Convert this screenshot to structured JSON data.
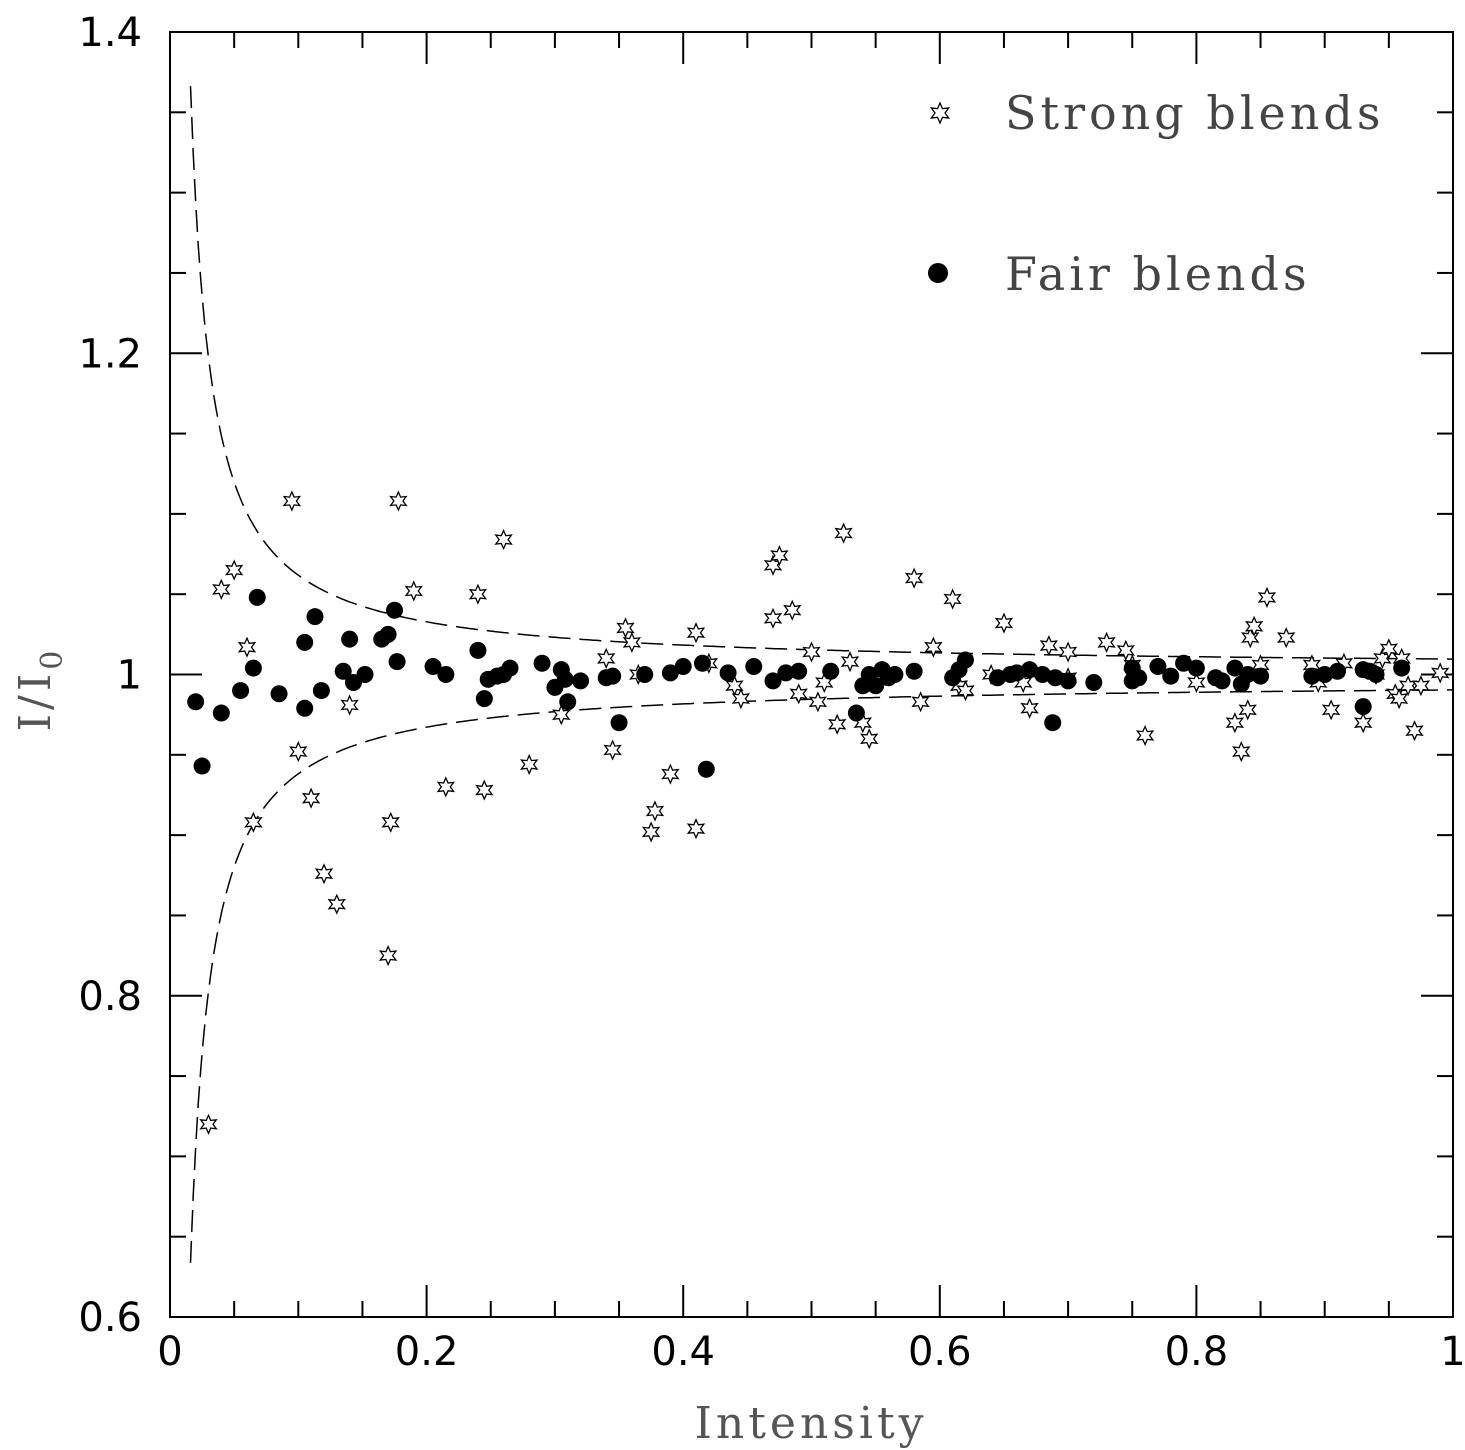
{
  "chart_data": {
    "type": "scatter",
    "xlabel": "Intensity",
    "ylabel": "I/I",
    "ylabel_sub": "0",
    "xlim": [
      0,
      1
    ],
    "ylim": [
      0.6,
      1.4
    ],
    "x_ticks": [
      {
        "value": 0,
        "label": "0"
      },
      {
        "value": 0.2,
        "label": "0.2"
      },
      {
        "value": 0.4,
        "label": "0.4"
      },
      {
        "value": 0.6,
        "label": "0.6"
      },
      {
        "value": 0.8,
        "label": "0.8"
      },
      {
        "value": 1,
        "label": "1"
      }
    ],
    "y_ticks": [
      {
        "value": 0.6,
        "label": "0.6"
      },
      {
        "value": 0.8,
        "label": "0.8"
      },
      {
        "value": 1,
        "label": "1"
      },
      {
        "value": 1.2,
        "label": "1.2"
      },
      {
        "value": 1.4,
        "label": "1.4"
      }
    ],
    "legend": {
      "placement": "top-right"
    },
    "series": [
      {
        "name": "Strong blends",
        "marker": "star",
        "points": [
          [
            0.03,
            0.72
          ],
          [
            0.04,
            1.053
          ],
          [
            0.05,
            1.065
          ],
          [
            0.06,
            1.017
          ],
          [
            0.065,
            0.908
          ],
          [
            0.095,
            1.108
          ],
          [
            0.1,
            0.952
          ],
          [
            0.11,
            0.923
          ],
          [
            0.12,
            0.876
          ],
          [
            0.13,
            0.857
          ],
          [
            0.14,
            0.981
          ],
          [
            0.17,
            0.825
          ],
          [
            0.172,
            0.908
          ],
          [
            0.178,
            1.108
          ],
          [
            0.19,
            1.052
          ],
          [
            0.215,
            0.93
          ],
          [
            0.24,
            1.05
          ],
          [
            0.245,
            0.928
          ],
          [
            0.26,
            1.084
          ],
          [
            0.28,
            0.944
          ],
          [
            0.305,
            0.975
          ],
          [
            0.34,
            1.01
          ],
          [
            0.345,
            0.953
          ],
          [
            0.355,
            1.029
          ],
          [
            0.36,
            1.02
          ],
          [
            0.365,
            1.0
          ],
          [
            0.375,
            0.902
          ],
          [
            0.378,
            0.915
          ],
          [
            0.39,
            0.938
          ],
          [
            0.41,
            0.904
          ],
          [
            0.41,
            1.026
          ],
          [
            0.42,
            1.007
          ],
          [
            0.44,
            0.993
          ],
          [
            0.445,
            0.985
          ],
          [
            0.47,
            1.035
          ],
          [
            0.47,
            1.068
          ],
          [
            0.475,
            1.074
          ],
          [
            0.485,
            1.04
          ],
          [
            0.49,
            0.988
          ],
          [
            0.5,
            1.014
          ],
          [
            0.505,
            0.983
          ],
          [
            0.51,
            0.995
          ],
          [
            0.52,
            0.969
          ],
          [
            0.525,
            1.088
          ],
          [
            0.53,
            1.008
          ],
          [
            0.54,
            0.97
          ],
          [
            0.545,
            0.96
          ],
          [
            0.58,
            1.06
          ],
          [
            0.585,
            0.983
          ],
          [
            0.595,
            1.017
          ],
          [
            0.61,
            1.047
          ],
          [
            0.615,
            0.993
          ],
          [
            0.62,
            0.99
          ],
          [
            0.64,
            1.0
          ],
          [
            0.65,
            1.032
          ],
          [
            0.665,
            0.995
          ],
          [
            0.67,
            0.979
          ],
          [
            0.685,
            1.018
          ],
          [
            0.7,
            0.998
          ],
          [
            0.7,
            1.014
          ],
          [
            0.73,
            1.02
          ],
          [
            0.745,
            1.015
          ],
          [
            0.75,
            1.006
          ],
          [
            0.76,
            0.962
          ],
          [
            0.8,
            0.995
          ],
          [
            0.83,
            0.97
          ],
          [
            0.835,
            0.952
          ],
          [
            0.84,
            0.978
          ],
          [
            0.842,
            1.023
          ],
          [
            0.845,
            1.03
          ],
          [
            0.85,
            1.006
          ],
          [
            0.855,
            1.048
          ],
          [
            0.87,
            1.023
          ],
          [
            0.89,
            1.006
          ],
          [
            0.895,
            0.995
          ],
          [
            0.905,
            0.978
          ],
          [
            0.915,
            1.007
          ],
          [
            0.93,
            0.97
          ],
          [
            0.94,
            1.0
          ],
          [
            0.945,
            1.01
          ],
          [
            0.95,
            1.016
          ],
          [
            0.955,
            0.988
          ],
          [
            0.958,
            0.985
          ],
          [
            0.96,
            1.01
          ],
          [
            0.965,
            0.993
          ],
          [
            0.97,
            0.965
          ],
          [
            0.975,
            0.993
          ],
          [
            0.99,
            1.001
          ]
        ]
      },
      {
        "name": "Fair blends",
        "marker": "circle",
        "points": [
          [
            0.02,
            0.983
          ],
          [
            0.025,
            0.943
          ],
          [
            0.04,
            0.976
          ],
          [
            0.055,
            0.99
          ],
          [
            0.065,
            1.004
          ],
          [
            0.068,
            1.048
          ],
          [
            0.085,
            0.988
          ],
          [
            0.105,
            0.979
          ],
          [
            0.105,
            1.02
          ],
          [
            0.113,
            1.036
          ],
          [
            0.118,
            0.99
          ],
          [
            0.135,
            1.002
          ],
          [
            0.14,
            1.022
          ],
          [
            0.143,
            0.995
          ],
          [
            0.152,
            1.0
          ],
          [
            0.165,
            1.022
          ],
          [
            0.17,
            1.025
          ],
          [
            0.175,
            1.04
          ],
          [
            0.177,
            1.008
          ],
          [
            0.205,
            1.005
          ],
          [
            0.215,
            1.0
          ],
          [
            0.24,
            1.015
          ],
          [
            0.245,
            0.985
          ],
          [
            0.248,
            0.997
          ],
          [
            0.255,
            0.999
          ],
          [
            0.26,
            1.0
          ],
          [
            0.265,
            1.004
          ],
          [
            0.29,
            1.007
          ],
          [
            0.3,
            0.992
          ],
          [
            0.305,
            1.003
          ],
          [
            0.308,
            0.997
          ],
          [
            0.31,
            0.983
          ],
          [
            0.32,
            0.996
          ],
          [
            0.34,
            0.998
          ],
          [
            0.345,
            0.999
          ],
          [
            0.35,
            0.97
          ],
          [
            0.37,
            1.0
          ],
          [
            0.39,
            1.001
          ],
          [
            0.4,
            1.005
          ],
          [
            0.415,
            1.007
          ],
          [
            0.418,
            0.941
          ],
          [
            0.435,
            1.001
          ],
          [
            0.455,
            1.005
          ],
          [
            0.47,
            0.996
          ],
          [
            0.48,
            1.001
          ],
          [
            0.49,
            1.002
          ],
          [
            0.515,
            1.002
          ],
          [
            0.535,
            0.976
          ],
          [
            0.54,
            0.993
          ],
          [
            0.545,
            1.0
          ],
          [
            0.55,
            0.993
          ],
          [
            0.555,
            1.003
          ],
          [
            0.56,
            0.998
          ],
          [
            0.565,
            1.0
          ],
          [
            0.58,
            1.002
          ],
          [
            0.61,
            0.998
          ],
          [
            0.615,
            1.003
          ],
          [
            0.62,
            1.009
          ],
          [
            0.645,
            0.998
          ],
          [
            0.655,
            1.0
          ],
          [
            0.66,
            1.001
          ],
          [
            0.67,
            1.003
          ],
          [
            0.68,
            1.0
          ],
          [
            0.688,
            0.97
          ],
          [
            0.69,
            0.998
          ],
          [
            0.7,
            0.996
          ],
          [
            0.72,
            0.995
          ],
          [
            0.75,
            1.004
          ],
          [
            0.75,
            0.996
          ],
          [
            0.755,
            0.998
          ],
          [
            0.77,
            1.005
          ],
          [
            0.78,
            0.999
          ],
          [
            0.79,
            1.007
          ],
          [
            0.8,
            1.004
          ],
          [
            0.815,
            0.998
          ],
          [
            0.82,
            0.996
          ],
          [
            0.83,
            1.004
          ],
          [
            0.835,
            0.994
          ],
          [
            0.84,
            1.0
          ],
          [
            0.85,
            0.999
          ],
          [
            0.89,
            0.999
          ],
          [
            0.9,
            1.0
          ],
          [
            0.91,
            1.002
          ],
          [
            0.93,
            1.003
          ],
          [
            0.93,
            0.98
          ],
          [
            0.935,
            1.002
          ],
          [
            0.94,
            1.0
          ],
          [
            0.96,
            1.004
          ]
        ]
      }
    ],
    "envelope_curves": "dashed"
  }
}
